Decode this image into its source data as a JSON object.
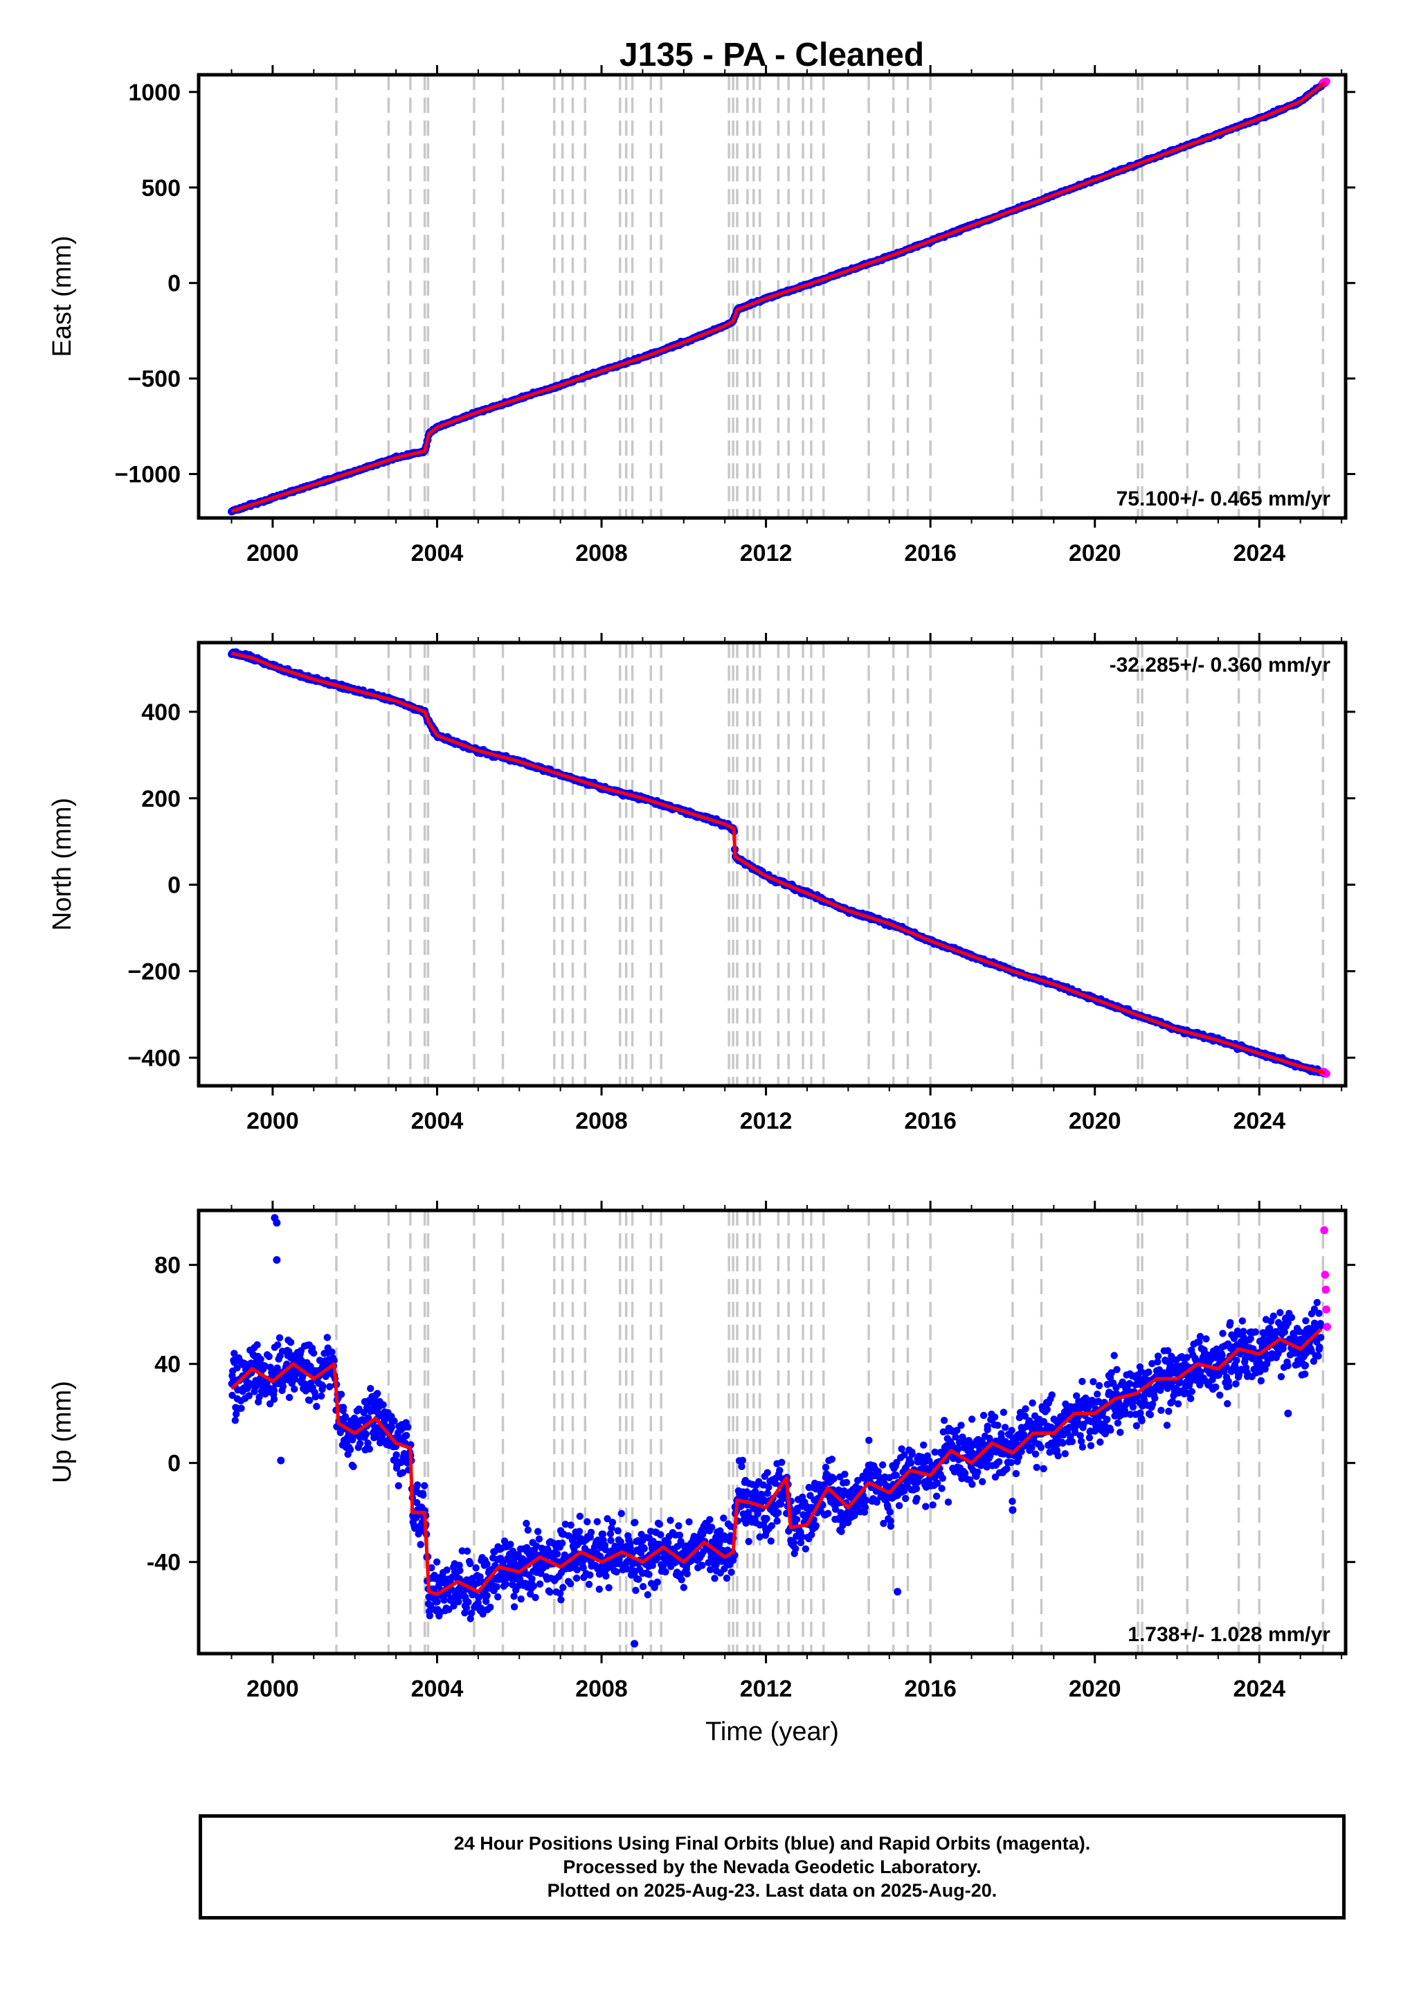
{
  "title": "J135  - PA - Cleaned",
  "colors": {
    "final_orbits": "#0000ff",
    "rapid_orbits": "#ff00ff",
    "model_fit": "#ff0000",
    "event_lines": "#c8c8c8",
    "frame": "#000000"
  },
  "chart_data": [
    {
      "type": "scatter",
      "component": "East",
      "ylabel": "East (mm)",
      "xlabel": "",
      "xlim": [
        1998.2,
        2026.1
      ],
      "ylim": [
        -1230,
        1090
      ],
      "yticks": [
        1000,
        500,
        0,
        -500,
        -1000
      ],
      "ytick_labels": [
        "1000",
        "500",
        "0",
        "−500",
        "−1000"
      ],
      "xticks": [
        2000,
        2004,
        2008,
        2012,
        2016,
        2020,
        2024
      ],
      "xtick_labels": [
        "2000",
        "2004",
        "2008",
        "2012",
        "2016",
        "2020",
        "2024"
      ],
      "rate_label": "75.100+/- 0.465 mm/yr",
      "rate_label_position": "bottom-right",
      "series": [
        {
          "role": "final",
          "x": [
            1999.0,
            2000.0,
            2001.0,
            2002.0,
            2003.0,
            2003.7,
            2003.8,
            2004.0,
            2005.0,
            2006.0,
            2007.0,
            2008.0,
            2009.0,
            2010.0,
            2011.0,
            2011.2,
            2011.3,
            2012.0,
            2013.0,
            2014.0,
            2015.0,
            2016.0,
            2017.0,
            2018.0,
            2019.0,
            2020.0,
            2021.0,
            2022.0,
            2023.0,
            2024.0,
            2025.0,
            2025.6
          ],
          "y": [
            -1195,
            -1125,
            -1055,
            -985,
            -915,
            -880,
            -790,
            -755,
            -675,
            -605,
            -535,
            -460,
            -390,
            -310,
            -225,
            -200,
            -140,
            -80,
            -10,
            65,
            140,
            220,
            300,
            380,
            460,
            540,
            620,
            700,
            780,
            860,
            950,
            1050
          ]
        },
        {
          "role": "rapid",
          "x": [
            2025.55,
            2025.6,
            2025.63
          ],
          "y": [
            1048,
            1052,
            1055
          ]
        }
      ],
      "events": [
        2001.55,
        2002.82,
        2003.35,
        2003.7,
        2003.78,
        2004.9,
        2005.6,
        2006.85,
        2007.05,
        2007.3,
        2007.6,
        2008.45,
        2008.6,
        2008.75,
        2009.2,
        2009.45,
        2011.1,
        2011.2,
        2011.3,
        2011.55,
        2011.7,
        2011.85,
        2012.3,
        2012.55,
        2012.9,
        2013.1,
        2013.4,
        2014.5,
        2015.1,
        2015.45,
        2016.0,
        2018.0,
        2018.7,
        2021.05,
        2021.15,
        2022.25,
        2023.5,
        2024.0,
        2025.55
      ]
    },
    {
      "type": "scatter",
      "component": "North",
      "ylabel": "North (mm)",
      "xlabel": "",
      "xlim": [
        1998.2,
        2026.1
      ],
      "ylim": [
        -465,
        560
      ],
      "yticks": [
        400,
        200,
        0,
        -200,
        -400
      ],
      "ytick_labels": [
        "400",
        "200",
        "0",
        "−200",
        "−400"
      ],
      "xticks": [
        2000,
        2004,
        2008,
        2012,
        2016,
        2020,
        2024
      ],
      "xtick_labels": [
        "2000",
        "2004",
        "2008",
        "2012",
        "2016",
        "2020",
        "2024"
      ],
      "rate_label": "-32.285+/- 0.360 mm/yr",
      "rate_label_position": "top-right",
      "series": [
        {
          "role": "final",
          "x": [
            1999.0,
            1999.5,
            2000.0,
            2001.0,
            2002.0,
            2003.0,
            2003.7,
            2003.8,
            2004.0,
            2005.0,
            2006.0,
            2007.0,
            2008.0,
            2009.0,
            2010.0,
            2011.0,
            2011.22,
            2011.25,
            2011.5,
            2012.0,
            2013.0,
            2014.0,
            2015.0,
            2016.0,
            2017.0,
            2018.0,
            2019.0,
            2020.0,
            2021.0,
            2022.0,
            2023.0,
            2024.0,
            2025.0,
            2025.6
          ],
          "y": [
            535,
            525,
            505,
            475,
            450,
            425,
            400,
            375,
            345,
            310,
            285,
            255,
            225,
            200,
            170,
            140,
            130,
            65,
            50,
            20,
            -20,
            -60,
            -90,
            -130,
            -165,
            -200,
            -230,
            -265,
            -300,
            -335,
            -360,
            -390,
            -420,
            -435
          ]
        },
        {
          "role": "rapid",
          "x": [
            2025.55,
            2025.6,
            2025.63
          ],
          "y": [
            -433,
            -435,
            -437
          ]
        }
      ],
      "events": [
        2001.55,
        2002.82,
        2003.35,
        2003.7,
        2003.78,
        2004.9,
        2005.6,
        2006.85,
        2007.05,
        2007.3,
        2007.6,
        2008.45,
        2008.6,
        2008.75,
        2009.2,
        2009.45,
        2011.1,
        2011.2,
        2011.3,
        2011.55,
        2011.7,
        2011.85,
        2012.3,
        2012.55,
        2012.9,
        2013.1,
        2013.4,
        2014.5,
        2015.1,
        2015.45,
        2016.0,
        2018.0,
        2018.7,
        2021.05,
        2021.15,
        2022.25,
        2023.5,
        2024.0,
        2025.55
      ]
    },
    {
      "type": "scatter",
      "component": "Up",
      "ylabel": "Up (mm)",
      "xlabel": "Time (year)",
      "xlim": [
        1998.2,
        2026.1
      ],
      "ylim": [
        -77,
        102
      ],
      "yticks": [
        80,
        40,
        0,
        -40
      ],
      "ytick_labels": [
        "80",
        "40",
        "0",
        "-40"
      ],
      "xticks": [
        2000,
        2004,
        2008,
        2012,
        2016,
        2020,
        2024
      ],
      "xtick_labels": [
        "2000",
        "2004",
        "2008",
        "2012",
        "2016",
        "2020",
        "2024"
      ],
      "rate_label": "1.738+/- 1.028 mm/yr",
      "rate_label_position": "bottom-right",
      "series": [
        {
          "role": "final",
          "x": [
            1999.0,
            1999.5,
            2000.0,
            2000.5,
            2001.0,
            2001.5,
            2001.6,
            2002.0,
            2002.5,
            2003.0,
            2003.35,
            2003.4,
            2003.7,
            2003.8,
            2004.0,
            2004.5,
            2005.0,
            2005.5,
            2006.0,
            2006.5,
            2007.0,
            2007.5,
            2008.0,
            2008.5,
            2009.0,
            2009.5,
            2010.0,
            2010.5,
            2011.0,
            2011.2,
            2011.3,
            2011.6,
            2012.0,
            2012.5,
            2012.6,
            2013.0,
            2013.5,
            2014.0,
            2014.5,
            2015.0,
            2015.5,
            2016.0,
            2016.5,
            2017.0,
            2017.5,
            2018.0,
            2018.5,
            2019.0,
            2019.5,
            2020.0,
            2020.5,
            2021.0,
            2021.5,
            2022.0,
            2022.5,
            2023.0,
            2023.5,
            2024.0,
            2024.5,
            2025.0,
            2025.5
          ],
          "y": [
            30,
            38,
            33,
            40,
            34,
            40,
            16,
            12,
            18,
            8,
            6,
            -20,
            -20,
            -52,
            -53,
            -48,
            -52,
            -42,
            -44,
            -38,
            -42,
            -36,
            -40,
            -36,
            -40,
            -34,
            -40,
            -32,
            -38,
            -36,
            -15,
            -16,
            -18,
            -6,
            -26,
            -25,
            -10,
            -18,
            -8,
            -12,
            -3,
            -5,
            5,
            0,
            8,
            4,
            12,
            12,
            20,
            20,
            26,
            28,
            34,
            34,
            40,
            38,
            46,
            44,
            50,
            46,
            54
          ]
        },
        {
          "role": "rapid",
          "x": [
            2025.58,
            2025.6,
            2025.62,
            2025.63,
            2025.65
          ],
          "y": [
            94,
            76,
            70,
            62,
            55
          ]
        }
      ],
      "outliers": [
        {
          "x": 2000.05,
          "y": 99
        },
        {
          "x": 2000.1,
          "y": 97
        },
        {
          "x": 2000.1,
          "y": 82
        },
        {
          "x": 2000.2,
          "y": 1
        },
        {
          "x": 2008.8,
          "y": -73
        },
        {
          "x": 2015.2,
          "y": -52
        },
        {
          "x": 2018.0,
          "y": -19
        },
        {
          "x": 2024.7,
          "y": 20
        }
      ],
      "events": [
        2001.55,
        2002.82,
        2003.35,
        2003.7,
        2003.78,
        2004.9,
        2005.6,
        2006.85,
        2007.05,
        2007.3,
        2007.6,
        2008.45,
        2008.6,
        2008.75,
        2009.2,
        2009.45,
        2011.1,
        2011.2,
        2011.3,
        2011.55,
        2011.7,
        2011.85,
        2012.3,
        2012.55,
        2012.9,
        2013.1,
        2013.4,
        2014.5,
        2015.1,
        2015.45,
        2016.0,
        2018.0,
        2018.7,
        2021.05,
        2021.15,
        2022.25,
        2023.5,
        2024.0,
        2025.55
      ]
    }
  ],
  "footer": {
    "line1": "24 Hour Positions Using Final Orbits (blue) and Rapid Orbits (magenta).",
    "line2": "Processed by the Nevada Geodetic Laboratory.",
    "line3": "Plotted on 2025-Aug-23. Last data on 2025-Aug-20."
  }
}
